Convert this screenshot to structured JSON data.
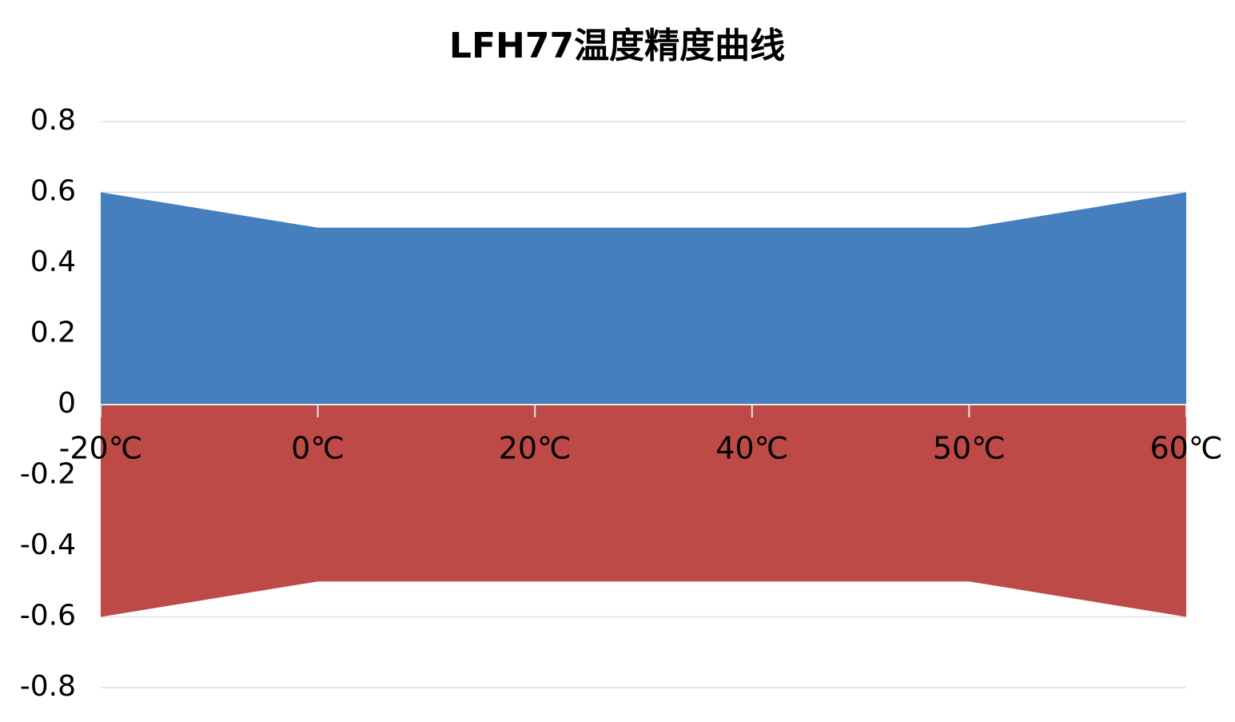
{
  "chart_data": {
    "type": "area",
    "title": "LFH77温度精度曲线",
    "categories": [
      "-20℃",
      "0℃",
      "20℃",
      "40℃",
      "50℃",
      "60℃"
    ],
    "series": [
      {
        "color": "#467fbd",
        "values": [
          0.6,
          0.5,
          0.5,
          0.5,
          0.5,
          0.6
        ]
      },
      {
        "color": "#be4a47",
        "values": [
          -0.6,
          -0.5,
          -0.5,
          -0.5,
          -0.5,
          -0.6
        ]
      }
    ],
    "ylim": [
      -0.8,
      0.8
    ],
    "yticks": [
      -0.8,
      -0.6,
      -0.4,
      -0.2,
      0,
      0.2,
      0.4,
      0.6,
      0.8
    ],
    "grid": true
  }
}
